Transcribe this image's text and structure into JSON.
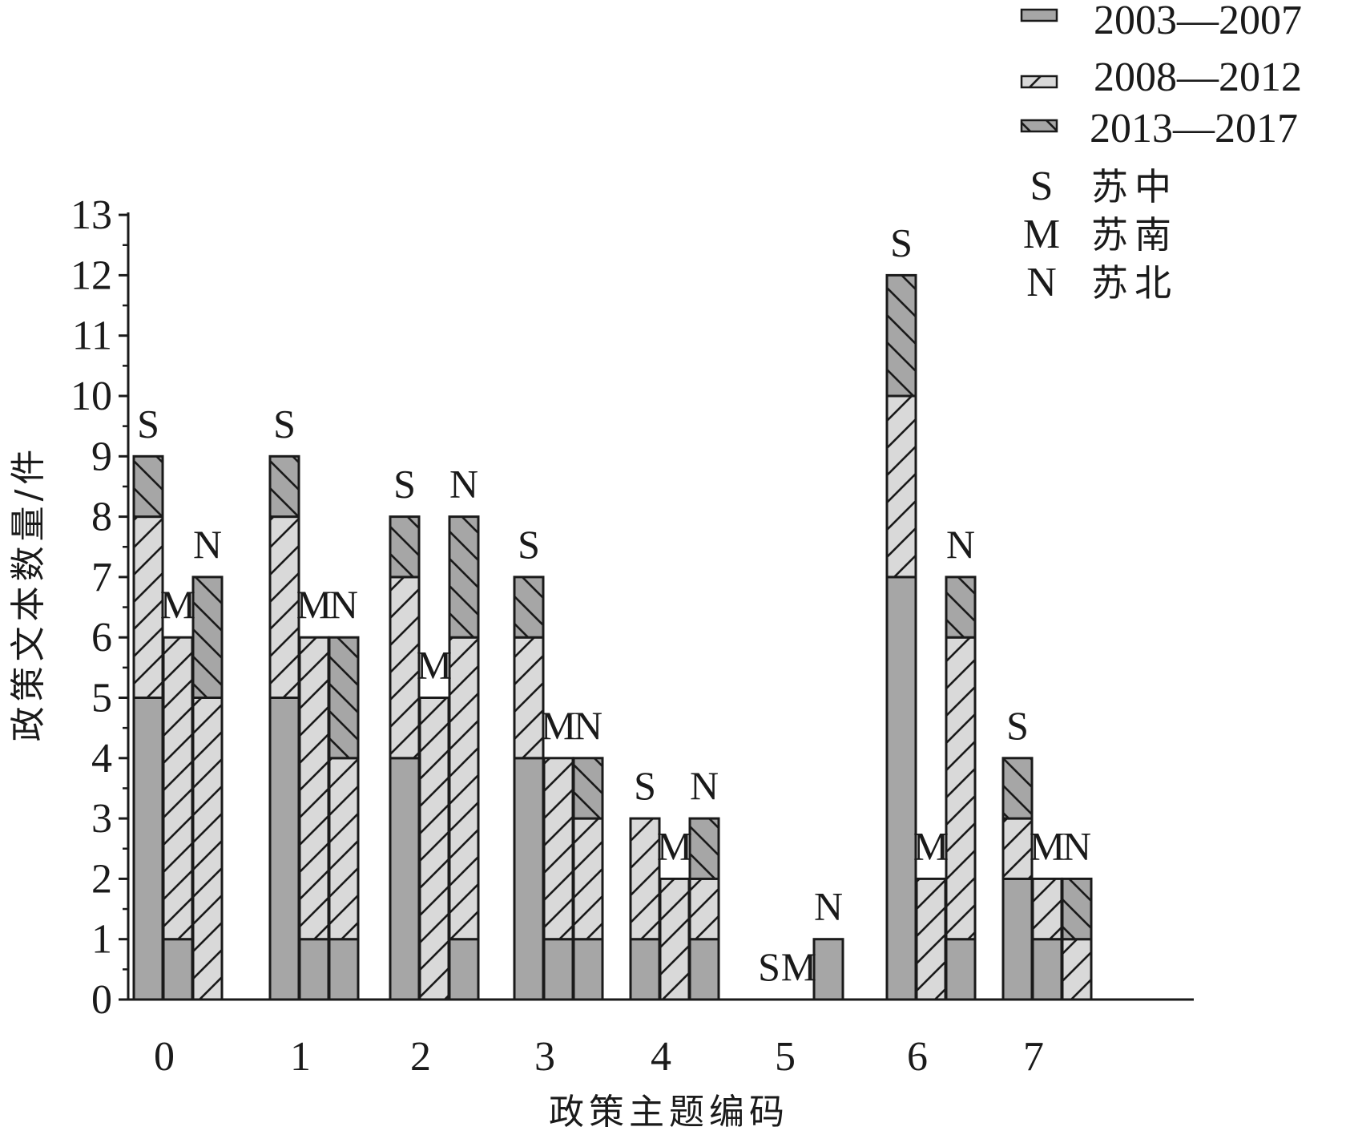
{
  "chart_data": {
    "type": "bar",
    "stacked": true,
    "xlabel": "政策主题编码",
    "ylabel": "政策文本数量/件",
    "ylim": [
      0,
      13
    ],
    "yticks": [
      0,
      1,
      2,
      3,
      4,
      5,
      6,
      7,
      8,
      9,
      10,
      11,
      12,
      13
    ],
    "categories": [
      "0",
      "1",
      "2",
      "3",
      "4",
      "5",
      "6",
      "7"
    ],
    "regions": [
      "S",
      "M",
      "N"
    ],
    "legend": {
      "periods": [
        {
          "name": "2003—2007",
          "style": "solid",
          "color": "#a6a6a6"
        },
        {
          "name": "2008—2012",
          "style": "hatch-forward",
          "color": "#d9d9d9"
        },
        {
          "name": "2013—2017",
          "style": "hatch-back",
          "color": "#a6a6a6"
        }
      ],
      "regions": [
        {
          "code": "S",
          "name": "苏中"
        },
        {
          "code": "M",
          "name": "苏南"
        },
        {
          "code": "N",
          "name": "苏北"
        }
      ]
    },
    "bars": [
      {
        "category": "0",
        "region": "S",
        "values": [
          5,
          3,
          1
        ],
        "label": "S"
      },
      {
        "category": "0",
        "region": "M",
        "values": [
          1,
          5,
          0
        ],
        "label": "M"
      },
      {
        "category": "0",
        "region": "N",
        "values": [
          0,
          5,
          2
        ],
        "label": "N"
      },
      {
        "category": "1",
        "region": "S",
        "values": [
          5,
          3,
          1
        ],
        "label": "S"
      },
      {
        "category": "1",
        "region": "M",
        "values": [
          1,
          5,
          0
        ],
        "label": "M"
      },
      {
        "category": "1",
        "region": "N",
        "values": [
          1,
          3,
          2
        ],
        "label": "N"
      },
      {
        "category": "2",
        "region": "S",
        "values": [
          4,
          3,
          1
        ],
        "label": "S"
      },
      {
        "category": "2",
        "region": "M",
        "values": [
          0,
          5,
          0
        ],
        "label": "M"
      },
      {
        "category": "2",
        "region": "N",
        "values": [
          1,
          5,
          2
        ],
        "label": "N"
      },
      {
        "category": "3",
        "region": "S",
        "values": [
          4,
          2,
          1
        ],
        "label": "S"
      },
      {
        "category": "3",
        "region": "M",
        "values": [
          1,
          3,
          0
        ],
        "label": "M"
      },
      {
        "category": "3",
        "region": "N",
        "values": [
          1,
          2,
          1
        ],
        "label": "N"
      },
      {
        "category": "4",
        "region": "S",
        "values": [
          1,
          2,
          0
        ],
        "label": "S"
      },
      {
        "category": "4",
        "region": "M",
        "values": [
          0,
          2,
          0
        ],
        "label": "M"
      },
      {
        "category": "4",
        "region": "N",
        "values": [
          1,
          1,
          1
        ],
        "label": "N"
      },
      {
        "category": "5",
        "region": "S",
        "values": [
          0,
          0,
          0
        ],
        "label": "S"
      },
      {
        "category": "5",
        "region": "M",
        "values": [
          0,
          0,
          0
        ],
        "label": "M"
      },
      {
        "category": "5",
        "region": "N",
        "values": [
          1,
          0,
          0
        ],
        "label": "N"
      },
      {
        "category": "6",
        "region": "S",
        "values": [
          7,
          3,
          2
        ],
        "label": "S"
      },
      {
        "category": "6",
        "region": "M",
        "values": [
          0,
          2,
          0
        ],
        "label": "M"
      },
      {
        "category": "6",
        "region": "N",
        "values": [
          1,
          5,
          1
        ],
        "label": "N"
      },
      {
        "category": "7",
        "region": "S",
        "values": [
          2,
          1,
          1
        ],
        "label": "S"
      },
      {
        "category": "7",
        "region": "M",
        "values": [
          1,
          1,
          0
        ],
        "label": "M"
      },
      {
        "category": "7",
        "region": "N",
        "values": [
          0,
          1,
          1
        ],
        "label": "N"
      }
    ]
  }
}
